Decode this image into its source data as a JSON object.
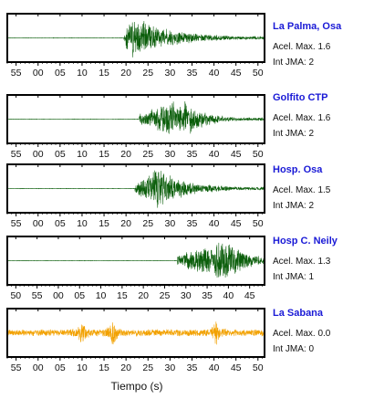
{
  "chart_data": [
    {
      "type": "line",
      "station": "La Palma, Osa",
      "accel_label": "Acel. Max. 1.6",
      "int_label": "Int JMA: 2",
      "color": "#0b5e0b",
      "xticks": [
        "55",
        "00",
        "05",
        "10",
        "15",
        "20",
        "25",
        "30",
        "35",
        "40",
        "45",
        "50"
      ],
      "xlim": [
        -7,
        51.5
      ],
      "onset": 19.5,
      "peak_at": 21.5,
      "decay": 9,
      "peak_amplitude": 1.0,
      "noise": 0.01,
      "seed": 11
    },
    {
      "type": "line",
      "station": "Golfito CTP",
      "accel_label": "Acel. Max. 1.6",
      "int_label": "Int JMA: 2",
      "color": "#0b5e0b",
      "xticks": [
        "55",
        "00",
        "05",
        "10",
        "15",
        "20",
        "25",
        "30",
        "35",
        "40",
        "45",
        "50"
      ],
      "xlim": [
        -7,
        51.5
      ],
      "onset": 23,
      "peak_at": 32.5,
      "decay": 5,
      "peak_amplitude": 1.0,
      "noise": 0.01,
      "seed": 23
    },
    {
      "type": "line",
      "station": "Hosp. Osa",
      "accel_label": "Acel. Max. 1.5",
      "int_label": "Int JMA: 2",
      "color": "#0b5e0b",
      "xticks": [
        "55",
        "00",
        "05",
        "10",
        "15",
        "20",
        "25",
        "30",
        "35",
        "40",
        "45",
        "50"
      ],
      "xlim": [
        -7,
        51.5
      ],
      "onset": 22,
      "peak_at": 27,
      "decay": 7,
      "peak_amplitude": 1.0,
      "noise": 0.01,
      "seed": 37
    },
    {
      "type": "line",
      "station": "Hosp C. Neily",
      "accel_label": "Acel. Max. 1.3",
      "int_label": "Int JMA: 1",
      "color": "#0b5e0b",
      "xticks": [
        "50",
        "55",
        "00",
        "05",
        "10",
        "15",
        "20",
        "25",
        "30",
        "35",
        "40",
        "45"
      ],
      "xlim": [
        -12,
        48.5
      ],
      "onset": 28,
      "peak_at": 39.5,
      "decay": 5,
      "peak_amplitude": 1.0,
      "noise": 0.01,
      "seed": 53
    },
    {
      "type": "line",
      "station": "La Sabana",
      "accel_label": "Acel. Max. 0.0",
      "int_label": "Int JMA: 0",
      "color": "#f2a100",
      "xticks": [
        "55",
        "00",
        "05",
        "10",
        "15",
        "20",
        "25",
        "30",
        "35",
        "40",
        "45",
        "50"
      ],
      "xlim": [
        -7,
        51.5
      ],
      "noise_trace": true,
      "bursts": [
        10,
        17,
        40.5
      ],
      "peak_amplitude": 0.7,
      "noise": 0.16,
      "seed": 71
    }
  ],
  "xlabel": "Tiempo (s)"
}
